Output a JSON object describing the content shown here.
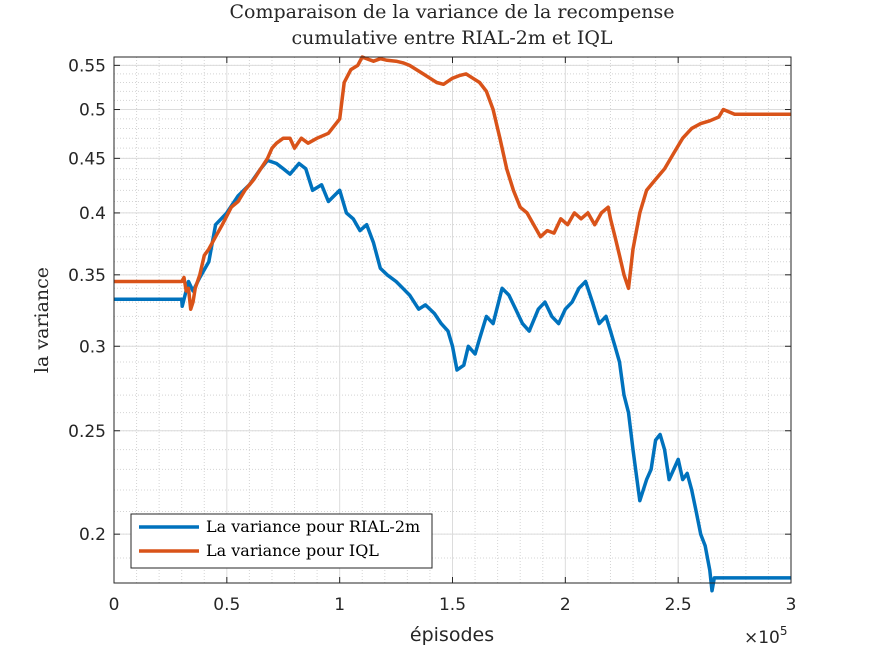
{
  "chart_data": {
    "type": "line",
    "title": [
      "Comparaison de la variance de la recompense",
      "cumulative entre RIAL-2m et IQL"
    ],
    "xlabel": "épisodes",
    "ylabel": "la variance",
    "x_exponent_label": "×10",
    "x_exponent_power": "5",
    "xlim": [
      0,
      300000
    ],
    "ylim": [
      0.18,
      0.56
    ],
    "y_scale": "log",
    "xticks": [
      0,
      50000,
      100000,
      150000,
      200000,
      250000,
      300000
    ],
    "xtick_labels": [
      "0",
      "0.5",
      "1",
      "1.5",
      "2",
      "2.5",
      "3"
    ],
    "yticks": [
      0.2,
      0.25,
      0.3,
      0.35,
      0.4,
      0.45,
      0.5,
      0.55
    ],
    "ytick_labels": [
      "0.2",
      "0.25",
      "0.3",
      "0.35",
      "0.4",
      "0.45",
      "0.5",
      "0.55"
    ],
    "grid": true,
    "legend_position": "bottom-left",
    "series": [
      {
        "name": "La variance pour RIAL-2m",
        "color": "#0072BD",
        "x": [
          0,
          30000,
          30200,
          33000,
          35000,
          38000,
          42000,
          45000,
          50000,
          55000,
          60000,
          65000,
          68000,
          72000,
          75000,
          78000,
          82000,
          85000,
          88000,
          92000,
          95000,
          100000,
          103000,
          106000,
          109000,
          112000,
          115000,
          118000,
          121000,
          125000,
          128000,
          131000,
          135000,
          138000,
          142000,
          145000,
          148000,
          150000,
          152000,
          155000,
          157000,
          160000,
          162000,
          165000,
          168000,
          172000,
          175000,
          178000,
          181000,
          184000,
          188000,
          191000,
          194000,
          197000,
          200000,
          203000,
          206000,
          209000,
          212000,
          215000,
          218000,
          220000,
          222000,
          224000,
          226000,
          228000,
          230000,
          233000,
          236000,
          238000,
          240000,
          242000,
          244000,
          246000,
          248000,
          250000,
          252000,
          254000,
          256000,
          258000,
          260000,
          262000,
          264000,
          265000,
          266000,
          270000,
          275000,
          280000,
          300000
        ],
        "y": [
          0.332,
          0.332,
          0.327,
          0.345,
          0.338,
          0.348,
          0.36,
          0.39,
          0.4,
          0.415,
          0.425,
          0.44,
          0.448,
          0.445,
          0.44,
          0.435,
          0.445,
          0.44,
          0.42,
          0.425,
          0.41,
          0.42,
          0.4,
          0.395,
          0.385,
          0.39,
          0.375,
          0.355,
          0.35,
          0.345,
          0.34,
          0.335,
          0.325,
          0.328,
          0.322,
          0.315,
          0.31,
          0.3,
          0.285,
          0.288,
          0.3,
          0.295,
          0.305,
          0.32,
          0.315,
          0.34,
          0.335,
          0.325,
          0.315,
          0.31,
          0.325,
          0.33,
          0.32,
          0.315,
          0.325,
          0.33,
          0.34,
          0.345,
          0.33,
          0.315,
          0.32,
          0.31,
          0.3,
          0.29,
          0.27,
          0.26,
          0.24,
          0.215,
          0.225,
          0.23,
          0.245,
          0.248,
          0.24,
          0.225,
          0.23,
          0.235,
          0.225,
          0.228,
          0.22,
          0.21,
          0.2,
          0.195,
          0.185,
          0.177,
          0.182,
          0.182,
          0.182,
          0.182,
          0.182
        ]
      },
      {
        "name": "La variance pour IQL",
        "color": "#D95319",
        "x": [
          0,
          30000,
          31000,
          32000,
          33000,
          34000,
          35000,
          36000,
          38000,
          40000,
          42000,
          45000,
          48000,
          52000,
          55000,
          58000,
          62000,
          65000,
          68000,
          70000,
          72000,
          75000,
          78000,
          80000,
          83000,
          86000,
          90000,
          95000,
          100000,
          102000,
          105000,
          108000,
          110000,
          112000,
          115000,
          118000,
          121000,
          125000,
          128000,
          131000,
          134000,
          137000,
          140000,
          143000,
          146000,
          150000,
          153000,
          156000,
          159000,
          162000,
          165000,
          168000,
          171000,
          174000,
          177000,
          180000,
          183000,
          186000,
          189000,
          192000,
          195000,
          198000,
          201000,
          204000,
          207000,
          210000,
          213000,
          216000,
          219000,
          220000,
          222000,
          224000,
          226000,
          228000,
          230000,
          233000,
          236000,
          240000,
          244000,
          248000,
          252000,
          256000,
          260000,
          264000,
          268000,
          270000,
          275000,
          280000,
          290000,
          300000
        ],
        "y": [
          0.345,
          0.345,
          0.348,
          0.338,
          0.34,
          0.325,
          0.33,
          0.34,
          0.35,
          0.365,
          0.37,
          0.38,
          0.39,
          0.405,
          0.41,
          0.42,
          0.43,
          0.44,
          0.45,
          0.46,
          0.465,
          0.47,
          0.47,
          0.46,
          0.47,
          0.465,
          0.47,
          0.475,
          0.49,
          0.53,
          0.545,
          0.55,
          0.56,
          0.558,
          0.555,
          0.558,
          0.556,
          0.555,
          0.553,
          0.55,
          0.545,
          0.54,
          0.535,
          0.53,
          0.528,
          0.535,
          0.538,
          0.54,
          0.535,
          0.53,
          0.52,
          0.5,
          0.47,
          0.44,
          0.42,
          0.405,
          0.4,
          0.39,
          0.38,
          0.385,
          0.383,
          0.395,
          0.39,
          0.4,
          0.395,
          0.4,
          0.39,
          0.4,
          0.405,
          0.395,
          0.38,
          0.365,
          0.35,
          0.34,
          0.37,
          0.4,
          0.42,
          0.43,
          0.44,
          0.455,
          0.47,
          0.48,
          0.485,
          0.488,
          0.492,
          0.5,
          0.495,
          0.495,
          0.495,
          0.495
        ]
      }
    ]
  }
}
